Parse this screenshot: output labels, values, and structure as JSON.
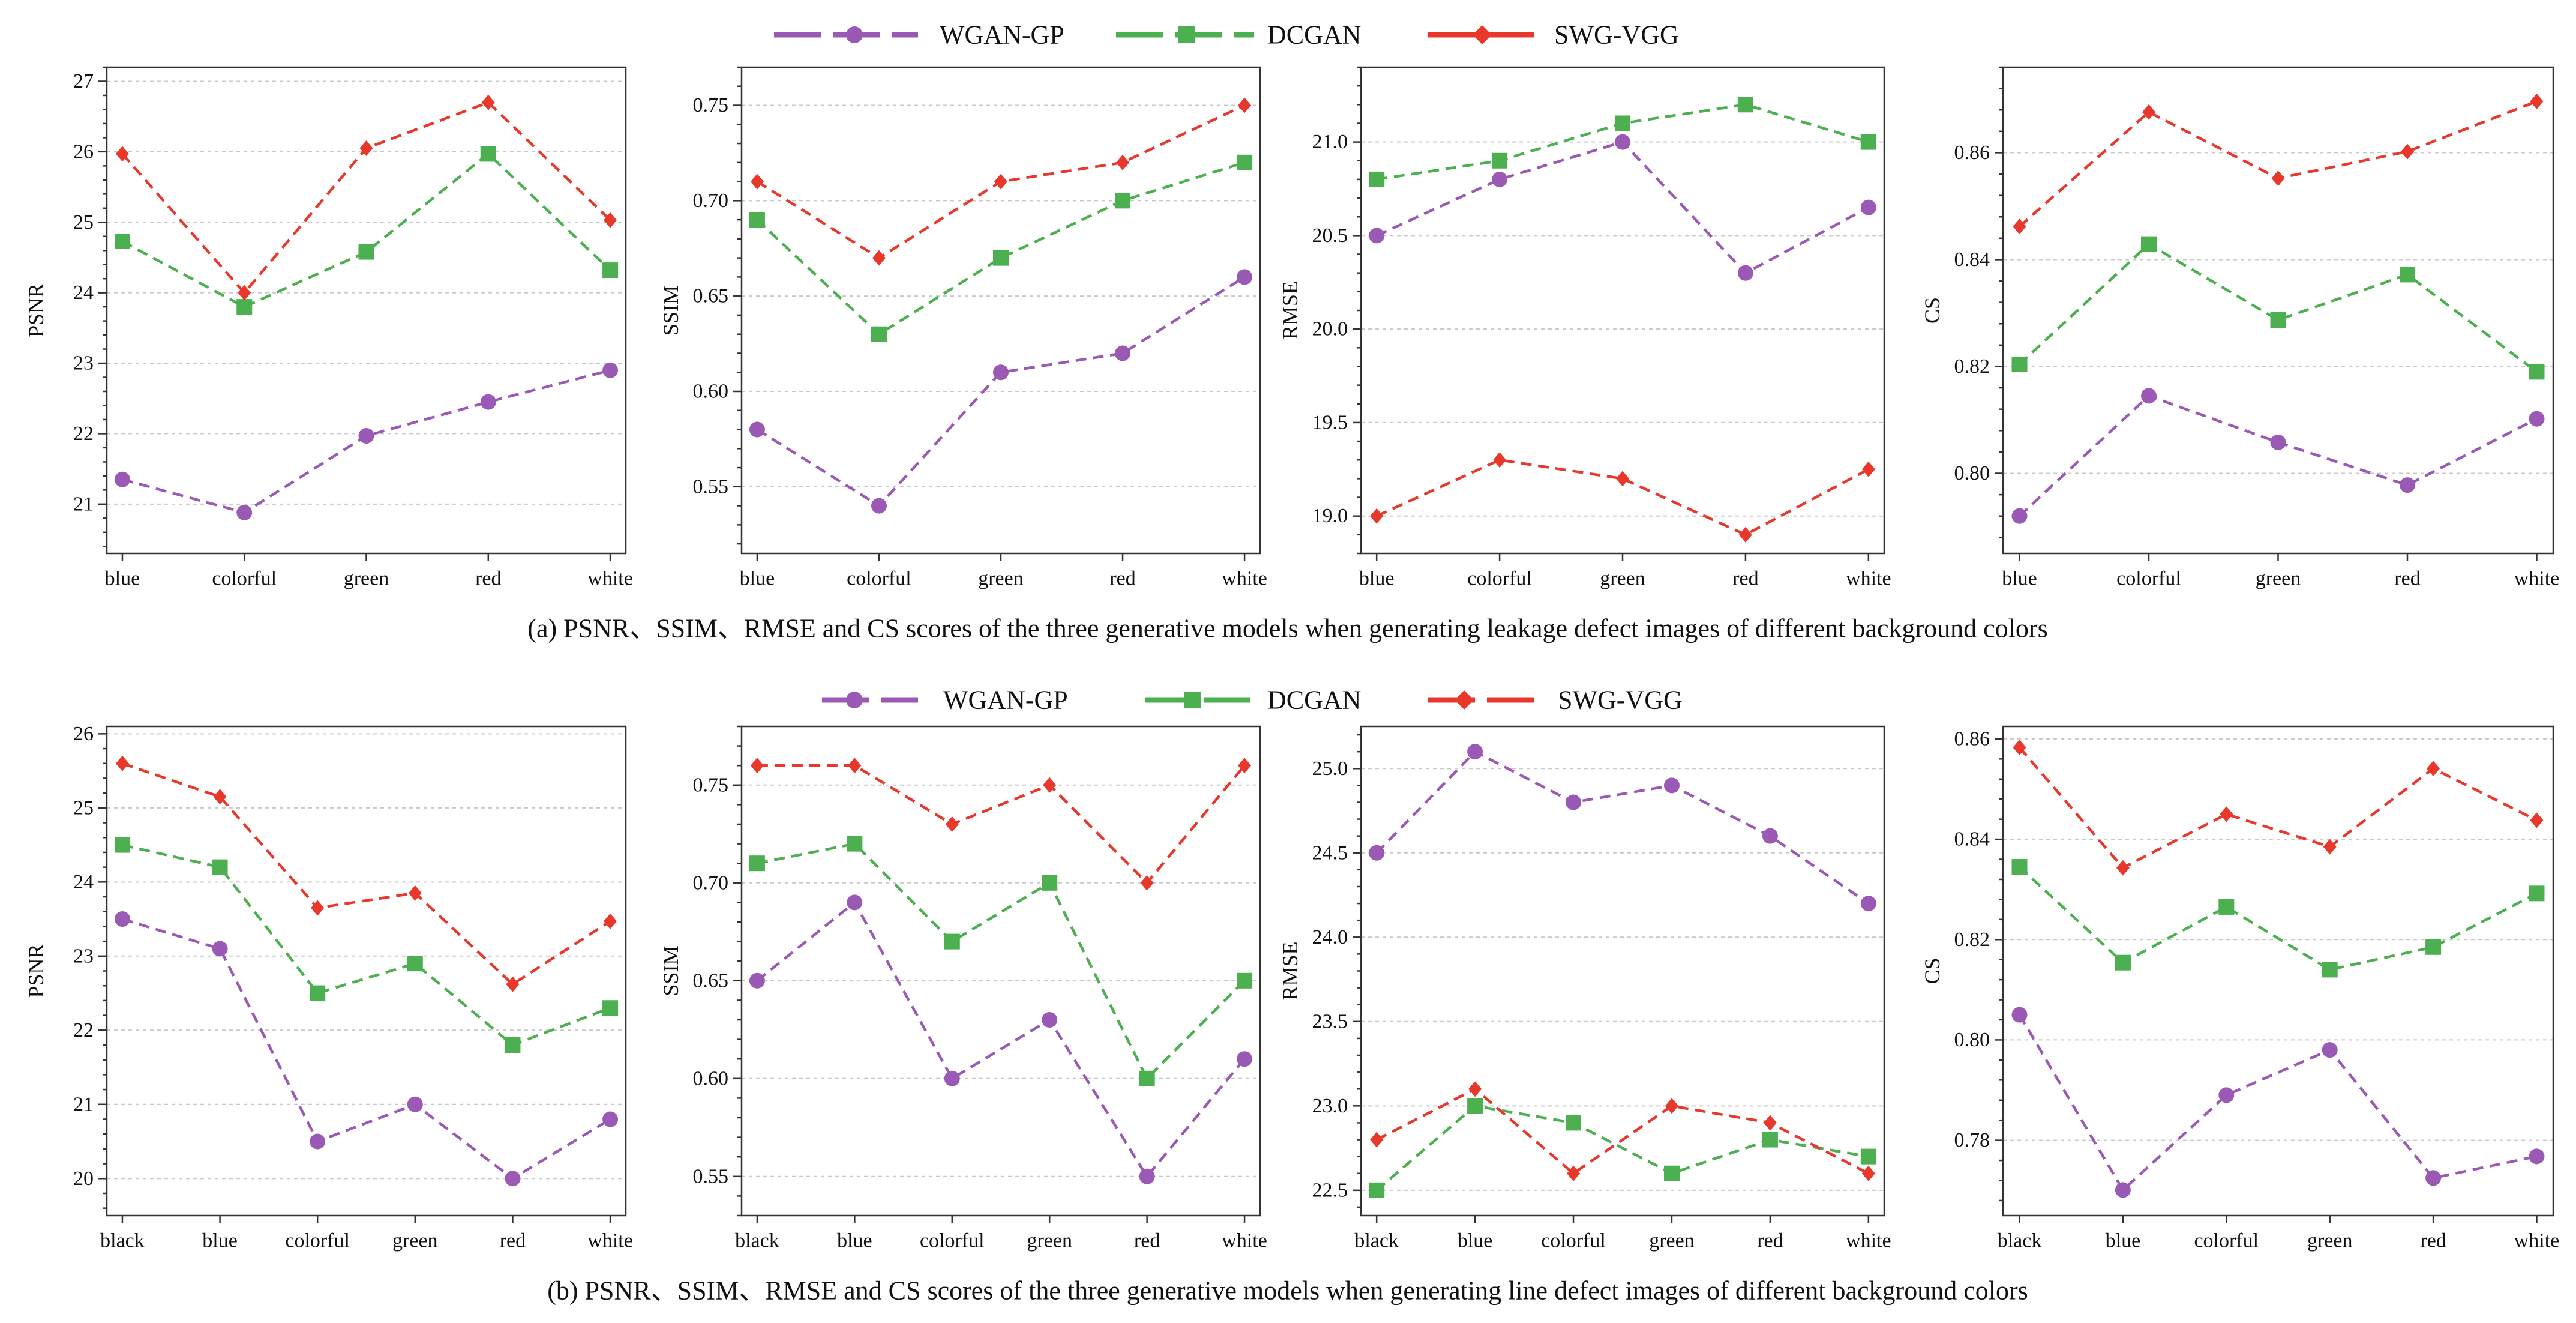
{
  "legend": [
    {
      "label": "WGAN-GP",
      "color": "#9b59b6",
      "marker": "circle"
    },
    {
      "label": "DCGAN",
      "color": "#4caf50",
      "marker": "square"
    },
    {
      "label": "SWG-VGG",
      "color": "#e8382b",
      "marker": "diamond"
    }
  ],
  "captions": {
    "top": "(a) PSNR、SSIM、RMSE and CS scores of the three generative models when generating leakage defect images of different background colors",
    "bottom": "(b) PSNR、SSIM、RMSE and CS scores of the three generative models when generating line defect images of different background colors"
  },
  "chart_data": [
    {
      "type": "line",
      "row": 0,
      "col": 0,
      "categories": [
        "blue",
        "colorful",
        "green",
        "red",
        "white"
      ],
      "ylabel": "PSNR",
      "ylim": [
        20.3,
        27.2
      ],
      "ymajor": [
        21,
        22,
        23,
        24,
        25,
        26,
        27
      ],
      "yminor": 0.2,
      "decimals": 0,
      "series": [
        {
          "name": "WGAN-GP",
          "values": [
            21.35,
            20.88,
            21.97,
            22.45,
            22.9
          ]
        },
        {
          "name": "DCGAN",
          "values": [
            24.73,
            23.8,
            24.58,
            25.97,
            24.32
          ]
        },
        {
          "name": "SWG-VGG",
          "values": [
            25.97,
            24.0,
            26.05,
            26.7,
            25.03
          ]
        }
      ]
    },
    {
      "type": "line",
      "row": 0,
      "col": 1,
      "categories": [
        "blue",
        "colorful",
        "green",
        "red",
        "white"
      ],
      "ylabel": "SSIM",
      "ylim": [
        0.515,
        0.77
      ],
      "ymajor": [
        0.55,
        0.6,
        0.65,
        0.7,
        0.75
      ],
      "yminor": 0.01,
      "decimals": 2,
      "series": [
        {
          "name": "WGAN-GP",
          "values": [
            0.58,
            0.54,
            0.61,
            0.62,
            0.66
          ]
        },
        {
          "name": "DCGAN",
          "values": [
            0.69,
            0.63,
            0.67,
            0.7,
            0.72
          ]
        },
        {
          "name": "SWG-VGG",
          "values": [
            0.71,
            0.67,
            0.71,
            0.72,
            0.75
          ]
        }
      ]
    },
    {
      "type": "line",
      "row": 0,
      "col": 2,
      "categories": [
        "blue",
        "colorful",
        "green",
        "red",
        "white"
      ],
      "ylabel": "RMSE",
      "ylim": [
        18.8,
        21.4
      ],
      "ymajor": [
        19.0,
        19.5,
        20.0,
        20.5,
        21.0
      ],
      "yminor": 0.1,
      "decimals": 1,
      "series": [
        {
          "name": "WGAN-GP",
          "values": [
            20.5,
            20.8,
            21.0,
            20.3,
            20.65
          ]
        },
        {
          "name": "DCGAN",
          "values": [
            20.8,
            20.9,
            21.1,
            21.2,
            21.0
          ]
        },
        {
          "name": "SWG-VGG",
          "values": [
            19.0,
            19.3,
            19.2,
            18.9,
            19.25
          ]
        }
      ]
    },
    {
      "type": "line",
      "row": 0,
      "col": 3,
      "categories": [
        "blue",
        "colorful",
        "green",
        "red",
        "white"
      ],
      "ylabel": "CS",
      "ylim": [
        0.785,
        0.876
      ],
      "ymajor": [
        0.8,
        0.82,
        0.84,
        0.86
      ],
      "yminor": 0.004,
      "decimals": 2,
      "series": [
        {
          "name": "WGAN-GP",
          "values": [
            0.792,
            0.8145,
            0.8058,
            0.7978,
            0.8102
          ]
        },
        {
          "name": "DCGAN",
          "values": [
            0.8204,
            0.8429,
            0.8287,
            0.8372,
            0.819
          ]
        },
        {
          "name": "SWG-VGG",
          "values": [
            0.8462,
            0.8676,
            0.8552,
            0.8602,
            0.8696
          ]
        }
      ]
    },
    {
      "type": "line",
      "row": 1,
      "col": 0,
      "categories": [
        "black",
        "blue",
        "colorful",
        "green",
        "red",
        "white"
      ],
      "ylabel": "PSNR",
      "ylim": [
        19.5,
        26.1
      ],
      "ymajor": [
        20,
        21,
        22,
        23,
        24,
        25,
        26
      ],
      "yminor": 0.2,
      "decimals": 0,
      "series": [
        {
          "name": "WGAN-GP",
          "values": [
            23.5,
            23.1,
            20.5,
            21.0,
            20.0,
            20.8
          ]
        },
        {
          "name": "DCGAN",
          "values": [
            24.5,
            24.2,
            22.5,
            22.9,
            21.8,
            22.3
          ]
        },
        {
          "name": "SWG-VGG",
          "values": [
            25.6,
            25.15,
            23.65,
            23.85,
            22.62,
            23.47
          ]
        }
      ]
    },
    {
      "type": "line",
      "row": 1,
      "col": 1,
      "categories": [
        "black",
        "blue",
        "colorful",
        "green",
        "red",
        "white"
      ],
      "ylabel": "SSIM",
      "ylim": [
        0.53,
        0.78
      ],
      "ymajor": [
        0.55,
        0.6,
        0.65,
        0.7,
        0.75
      ],
      "yminor": 0.01,
      "decimals": 2,
      "series": [
        {
          "name": "WGAN-GP",
          "values": [
            0.65,
            0.69,
            0.6,
            0.63,
            0.55,
            0.61
          ]
        },
        {
          "name": "DCGAN",
          "values": [
            0.71,
            0.72,
            0.67,
            0.7,
            0.6,
            0.65
          ]
        },
        {
          "name": "SWG-VGG",
          "values": [
            0.76,
            0.76,
            0.73,
            0.75,
            0.7,
            0.76
          ]
        }
      ]
    },
    {
      "type": "line",
      "row": 1,
      "col": 2,
      "categories": [
        "black",
        "blue",
        "colorful",
        "green",
        "red",
        "white"
      ],
      "ylabel": "RMSE",
      "ylim": [
        22.35,
        25.25
      ],
      "ymajor": [
        22.5,
        23.0,
        23.5,
        24.0,
        24.5,
        25.0
      ],
      "yminor": 0.1,
      "decimals": 1,
      "series": [
        {
          "name": "WGAN-GP",
          "values": [
            24.5,
            25.1,
            24.8,
            24.9,
            24.6,
            24.2
          ]
        },
        {
          "name": "DCGAN",
          "values": [
            22.5,
            23.0,
            22.9,
            22.6,
            22.8,
            22.7
          ]
        },
        {
          "name": "SWG-VGG",
          "values": [
            22.8,
            23.1,
            22.6,
            23.0,
            22.9,
            22.6
          ]
        }
      ]
    },
    {
      "type": "line",
      "row": 1,
      "col": 3,
      "categories": [
        "black",
        "blue",
        "colorful",
        "green",
        "red",
        "white"
      ],
      "ylabel": "CS",
      "ylim": [
        0.765,
        0.8625
      ],
      "ymajor": [
        0.78,
        0.8,
        0.82,
        0.84,
        0.86
      ],
      "yminor": 0.004,
      "decimals": 2,
      "series": [
        {
          "name": "WGAN-GP",
          "values": [
            0.805,
            0.7701,
            0.789,
            0.798,
            0.7725,
            0.7768
          ]
        },
        {
          "name": "DCGAN",
          "values": [
            0.8345,
            0.8154,
            0.8265,
            0.814,
            0.8185,
            0.8292
          ]
        },
        {
          "name": "SWG-VGG",
          "values": [
            0.8583,
            0.8343,
            0.845,
            0.8385,
            0.8541,
            0.8438
          ]
        }
      ]
    }
  ]
}
